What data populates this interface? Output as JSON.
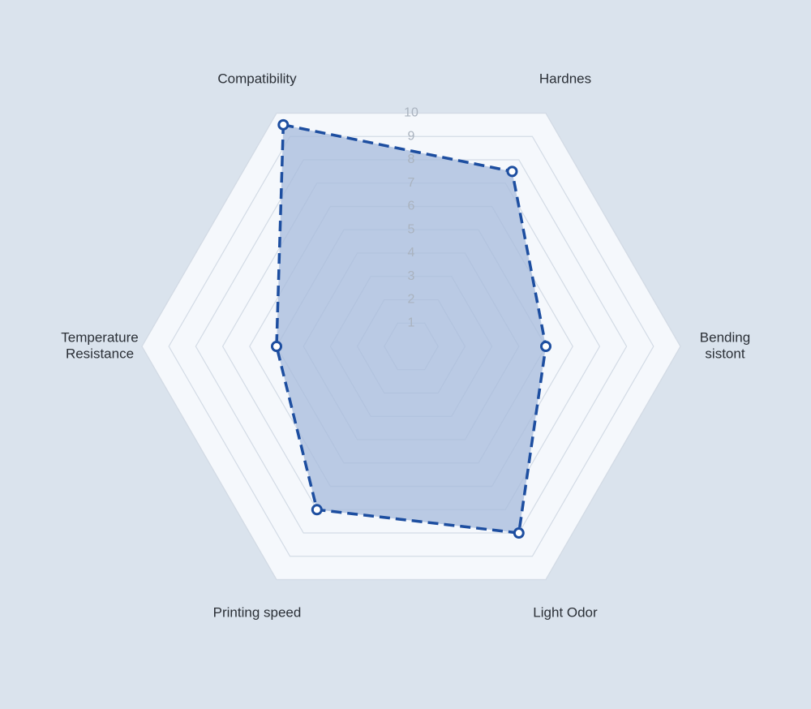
{
  "chart_data": {
    "type": "radar",
    "axes": [
      {
        "label_lines": [
          "Compatibility"
        ],
        "value": 9.5
      },
      {
        "label_lines": [
          "Hardnes"
        ],
        "value": 7.5
      },
      {
        "label_lines": [
          "Bending",
          "sistont"
        ],
        "value": 5.0
      },
      {
        "label_lines": [
          "Light Odor"
        ],
        "value": 8.0
      },
      {
        "label_lines": [
          "Printing speed"
        ],
        "value": 7.0
      },
      {
        "label_lines": [
          "Temperature",
          "Resistance"
        ],
        "value": 5.0
      }
    ],
    "ticks": [
      "1",
      "2",
      "3",
      "4",
      "5",
      "6",
      "7",
      "8",
      "9",
      "10"
    ],
    "range": [
      0,
      10
    ],
    "grid": true,
    "colors": {
      "background": "#dae3ed",
      "plot_area": "#f5f8fc",
      "grid_line": "#d3dbe5",
      "fill": "#a9bcdc",
      "stroke": "#1d4ea0",
      "marker_fill": "#ffffff"
    }
  }
}
